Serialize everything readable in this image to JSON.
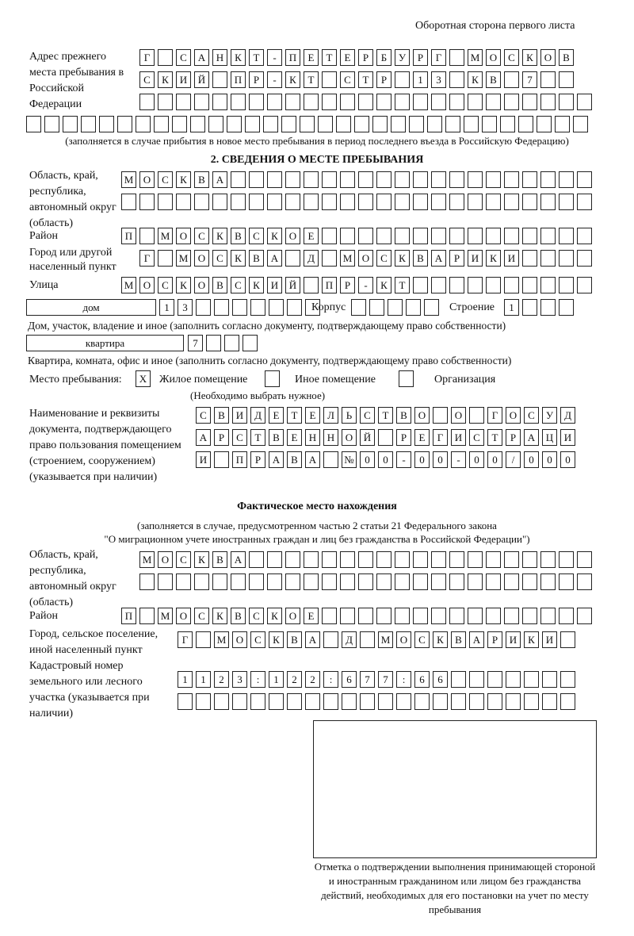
{
  "header": "Оборотная сторона первого листа",
  "prev_address": {
    "label": "Адрес прежнего места пребывания в Российской Федерации",
    "rows": [
      [
        "Г",
        "",
        "С",
        "А",
        "Н",
        "К",
        "Т",
        "-",
        "П",
        "Е",
        "Т",
        "Е",
        "Р",
        "Б",
        "У",
        "Р",
        "Г",
        "",
        "М",
        "О",
        "С",
        "К",
        "О",
        "В"
      ],
      [
        "С",
        "К",
        "И",
        "Й",
        "",
        "П",
        "Р",
        "-",
        "К",
        "Т",
        "",
        "С",
        "Т",
        "Р",
        "",
        "1",
        "3",
        "",
        "К",
        "В",
        "",
        "7",
        "",
        ""
      ],
      [
        "",
        "",
        "",
        "",
        "",
        "",
        "",
        "",
        "",
        "",
        "",
        "",
        "",
        "",
        "",
        "",
        "",
        "",
        "",
        "",
        "",
        "",
        "",
        "",
        ""
      ],
      [
        "",
        "",
        "",
        "",
        "",
        "",
        "",
        "",
        "",
        "",
        "",
        "",
        "",
        "",
        "",
        "",
        "",
        "",
        "",
        "",
        "",
        "",
        "",
        "",
        "",
        "",
        "",
        "",
        "",
        "",
        ""
      ]
    ],
    "note": "(заполняется в случае прибытия в новое место пребывания в период последнего въезда в Российскую Федерацию)"
  },
  "section2": {
    "title": "2. СВЕДЕНИЯ О МЕСТЕ ПРЕБЫВАНИЯ",
    "region_label": "Область, край, республика, автономный округ (область)",
    "region_rows": [
      [
        "М",
        "О",
        "С",
        "К",
        "В",
        "А",
        "",
        "",
        "",
        "",
        "",
        "",
        "",
        "",
        "",
        "",
        "",
        "",
        "",
        "",
        "",
        "",
        "",
        "",
        "",
        ""
      ],
      [
        "",
        "",
        "",
        "",
        "",
        "",
        "",
        "",
        "",
        "",
        "",
        "",
        "",
        "",
        "",
        "",
        "",
        "",
        "",
        "",
        "",
        "",
        "",
        "",
        "",
        ""
      ]
    ],
    "district_label": "Район",
    "district": [
      "П",
      "",
      "М",
      "О",
      "С",
      "К",
      "В",
      "С",
      "К",
      "О",
      "Е",
      "",
      "",
      "",
      "",
      "",
      "",
      "",
      "",
      "",
      "",
      "",
      "",
      "",
      "",
      ""
    ],
    "city_label": "Город или другой населенный пункт",
    "city": [
      "Г",
      "",
      "М",
      "О",
      "С",
      "К",
      "В",
      "А",
      "",
      "Д",
      "",
      "М",
      "О",
      "С",
      "К",
      "В",
      "А",
      "Р",
      "И",
      "К",
      "И",
      "",
      "",
      "",
      ""
    ],
    "street_label": "Улица",
    "street": [
      "М",
      "О",
      "С",
      "К",
      "О",
      "В",
      "С",
      "К",
      "И",
      "Й",
      "",
      "П",
      "Р",
      "-",
      "К",
      "Т",
      "",
      "",
      "",
      "",
      "",
      "",
      "",
      "",
      "",
      ""
    ],
    "house_type": "дом",
    "house": [
      "1",
      "3",
      "",
      "",
      "",
      "",
      "",
      "",
      ""
    ],
    "korpus_label": "Корпус",
    "korpus": [
      "",
      "",
      "",
      "",
      ""
    ],
    "building_label": "Строение",
    "building": [
      "1",
      "",
      "",
      ""
    ],
    "house_note": "Дом, участок, владение и иное (заполнить согласно документу, подтверждающему право собственности)",
    "flat_type": "квартира",
    "flat": [
      "7",
      "",
      "",
      ""
    ],
    "flat_note": "Квартира, комната, офис и иное (заполнить согласно документу, подтверждающему право собственности)",
    "place_label": "Место пребывания:",
    "options": [
      {
        "label": "Жилое помещение",
        "mark": "X"
      },
      {
        "label": "Иное помещение",
        "mark": ""
      },
      {
        "label": "Организация",
        "mark": ""
      }
    ],
    "choose_note": "(Необходимо выбрать нужное)",
    "doc_label": "Наименование и реквизиты документа, подтверждающего право пользования помещением (строением, сооружением) (указывается при наличии)",
    "doc_rows": [
      [
        "С",
        "В",
        "И",
        "Д",
        "Е",
        "Т",
        "Е",
        "Л",
        "Ь",
        "С",
        "Т",
        "В",
        "О",
        "",
        "О",
        "",
        "Г",
        "О",
        "С",
        "У",
        "Д"
      ],
      [
        "А",
        "Р",
        "С",
        "Т",
        "В",
        "Е",
        "Н",
        "Н",
        "О",
        "Й",
        "",
        "Р",
        "Е",
        "Г",
        "И",
        "С",
        "Т",
        "Р",
        "А",
        "Ц",
        "И"
      ],
      [
        "И",
        "",
        "П",
        "Р",
        "А",
        "В",
        "А",
        "",
        "№",
        "0",
        "0",
        "-",
        "0",
        "0",
        "-",
        "0",
        "0",
        "/",
        "0",
        "0",
        "0"
      ]
    ]
  },
  "actual": {
    "title": "Фактическое место нахождения",
    "note1": "(заполняется в случае, предусмотренном частью 2 статьи 21 Федерального закона",
    "note2": "\"О миграционном учете иностранных граждан и лиц без гражданства в Российской Федерации\")",
    "region_label": "Область, край, республика, автономный округ (область)",
    "region_rows": [
      [
        "М",
        "О",
        "С",
        "К",
        "В",
        "А",
        "",
        "",
        "",
        "",
        "",
        "",
        "",
        "",
        "",
        "",
        "",
        "",
        "",
        "",
        "",
        "",
        "",
        "",
        ""
      ],
      [
        "",
        "",
        "",
        "",
        "",
        "",
        "",
        "",
        "",
        "",
        "",
        "",
        "",
        "",
        "",
        "",
        "",
        "",
        "",
        "",
        "",
        "",
        "",
        "",
        ""
      ]
    ],
    "district_label": "Район",
    "district": [
      "П",
      "",
      "М",
      "О",
      "С",
      "К",
      "В",
      "С",
      "К",
      "О",
      "Е",
      "",
      "",
      "",
      "",
      "",
      "",
      "",
      "",
      "",
      "",
      "",
      "",
      "",
      "",
      ""
    ],
    "city_label": "Город, сельское поселение, иной населенный пункт",
    "city": [
      "Г",
      "",
      "М",
      "О",
      "С",
      "К",
      "В",
      "А",
      "",
      "Д",
      "",
      "М",
      "О",
      "С",
      "К",
      "В",
      "А",
      "Р",
      "И",
      "К",
      "И",
      ""
    ],
    "cadastre_label": "Кадастровый номер земельного или лесного участка (указывается при наличии)",
    "cadastre_rows": [
      [
        "1",
        "1",
        "2",
        "3",
        ":",
        "1",
        "2",
        "2",
        ":",
        "6",
        "7",
        "7",
        ":",
        "6",
        "6",
        "",
        "",
        "",
        "",
        "",
        "",
        ""
      ],
      [
        "",
        "",
        "",
        "",
        "",
        "",
        "",
        "",
        "",
        "",
        "",
        "",
        "",
        "",
        "",
        "",
        "",
        "",
        "",
        "",
        "",
        ""
      ]
    ]
  },
  "stamp_caption": "Отметка о подтверждении выполнения принимающей стороной и иностранным гражданином или лицом без гражданства действий, необходимых для его постановки на учет по месту пребывания"
}
